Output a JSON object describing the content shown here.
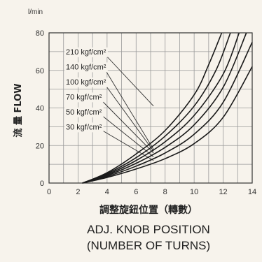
{
  "chart_data": {
    "type": "line",
    "y_unit": "l/min",
    "ylabel": "流 量 FLOW",
    "xlabel_cn": "調整旋鈕位置（轉數）",
    "xlabel_line1": "ADJ. KNOB POSITION",
    "xlabel_line2": "(NUMBER OF TURNS)",
    "xlim": [
      0,
      14
    ],
    "ylim": [
      0,
      80
    ],
    "x_ticks": [
      0,
      2,
      4,
      6,
      8,
      10,
      12,
      14
    ],
    "y_ticks": [
      0,
      20,
      40,
      60,
      80
    ],
    "grid": true,
    "series": [
      {
        "name": "210 kgf/cm²",
        "x": [
          2.3,
          4,
          6,
          8,
          10,
          11,
          11.9
        ],
        "y": [
          0,
          5.5,
          15.5,
          28,
          47,
          63,
          80
        ]
      },
      {
        "name": "140 kgf/cm²",
        "x": [
          2.3,
          4,
          6,
          8,
          10,
          11.5,
          12.5
        ],
        "y": [
          0,
          5,
          13.5,
          25,
          41,
          60,
          80
        ]
      },
      {
        "name": "100 kgf/cm²",
        "x": [
          2.3,
          4,
          6,
          8,
          10,
          12,
          13.1
        ],
        "y": [
          0,
          4.5,
          12,
          22,
          36,
          58,
          80
        ]
      },
      {
        "name": "70 kgf/cm²",
        "x": [
          2.3,
          4,
          6,
          8,
          10,
          12,
          13.6
        ],
        "y": [
          0,
          4,
          10.5,
          19,
          31,
          51,
          80
        ]
      },
      {
        "name": "50 kgf/cm²",
        "x": [
          2.3,
          4,
          6,
          8,
          10,
          12,
          14
        ],
        "y": [
          0,
          3.5,
          9,
          16,
          26,
          43,
          75
        ]
      },
      {
        "name": "30 kgf/cm²",
        "x": [
          2.3,
          4,
          6,
          8,
          10,
          12,
          14
        ],
        "y": [
          0,
          3,
          7.5,
          13,
          21,
          35,
          62
        ]
      }
    ],
    "label_anchors": [
      {
        "series": 0,
        "x": 7.2,
        "y": 41
      },
      {
        "series": 1,
        "x": 7.2,
        "y": 18
      },
      {
        "series": 2,
        "x": 7.2,
        "y": 17
      },
      {
        "series": 3,
        "x": 7.2,
        "y": 16
      },
      {
        "series": 4,
        "x": 7.2,
        "y": 14
      },
      {
        "series": 5,
        "x": 7.2,
        "y": 12
      }
    ],
    "label_values": [
      70,
      62,
      54,
      46,
      38,
      30
    ]
  }
}
